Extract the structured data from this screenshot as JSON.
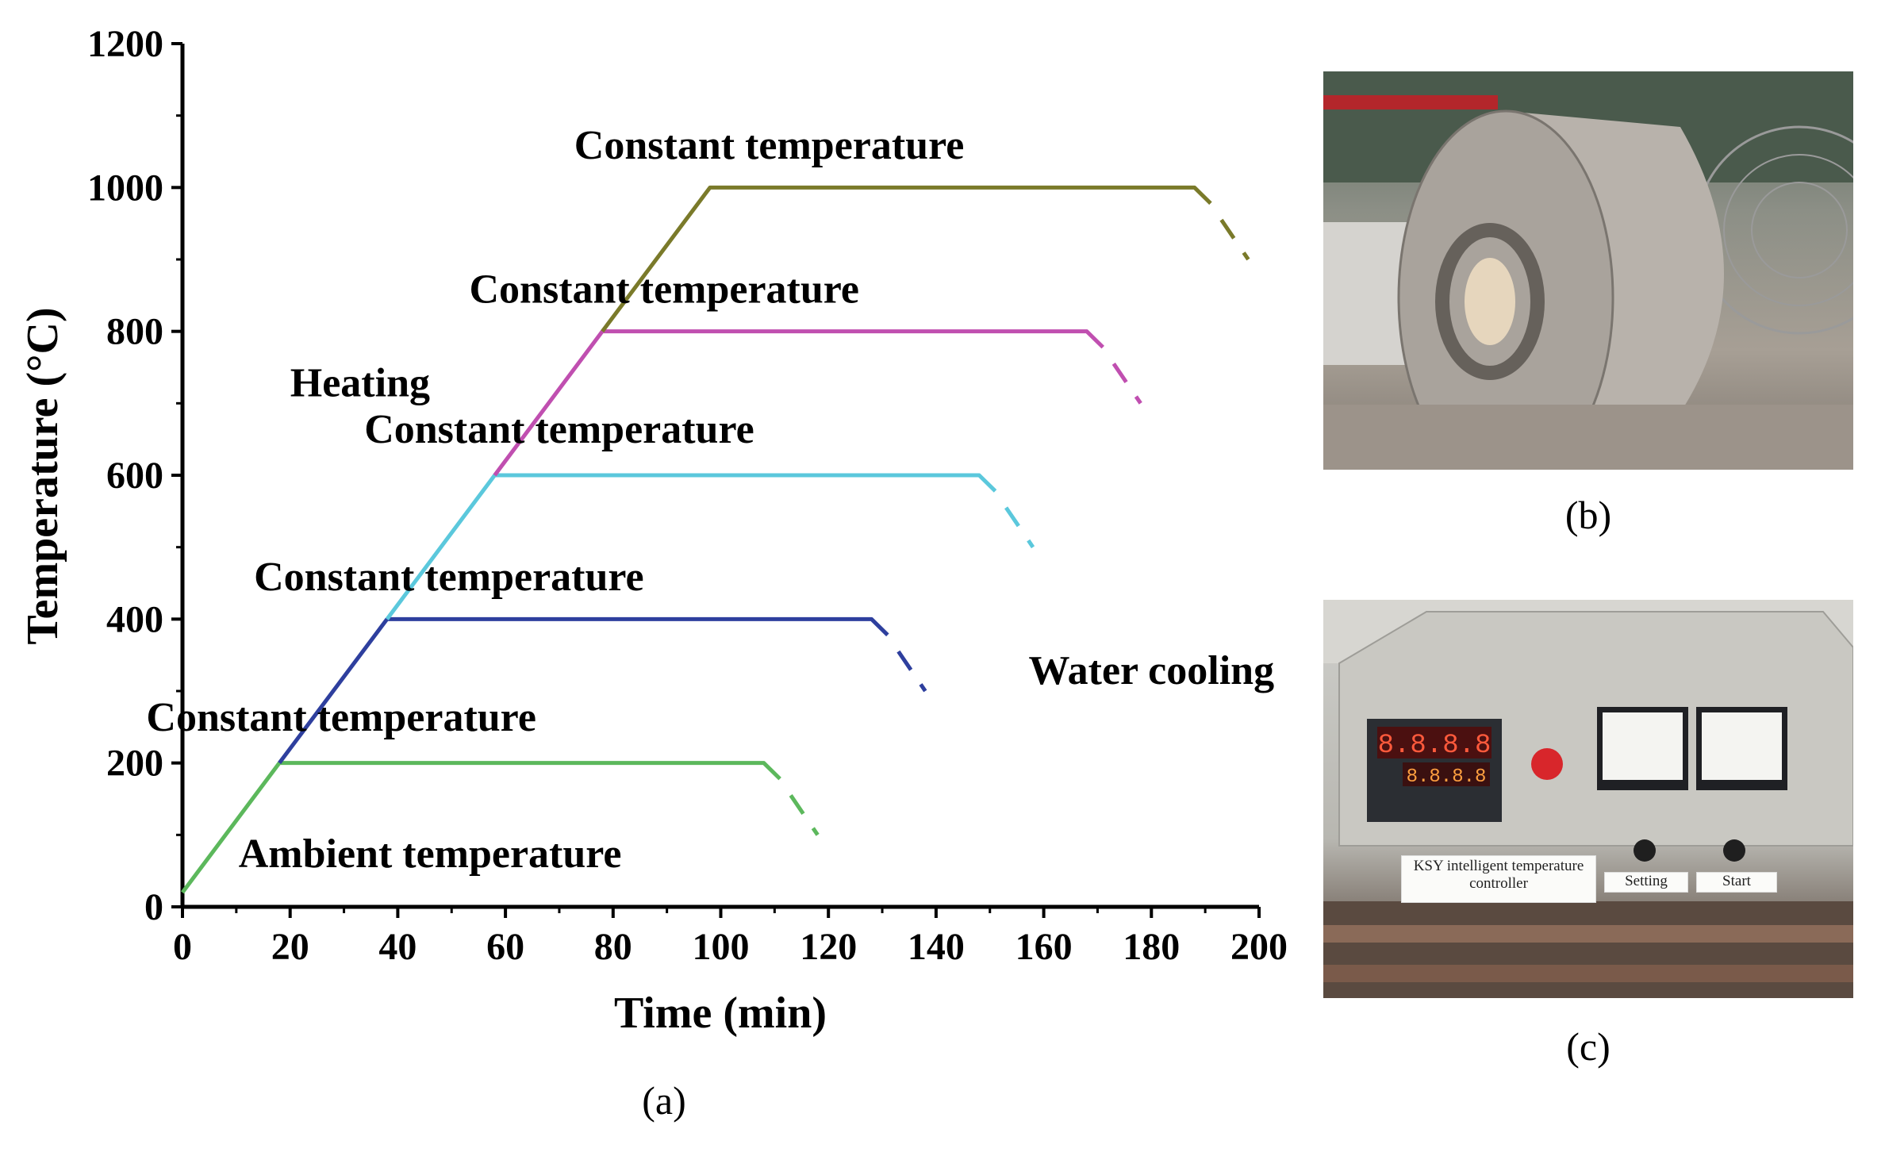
{
  "chart_data": {
    "type": "line",
    "xlabel": "Time (min)",
    "ylabel": "Temperature (°C)",
    "xlim": [
      0,
      200
    ],
    "ylim": [
      0,
      1200
    ],
    "x_ticks": [
      0,
      20,
      40,
      60,
      80,
      100,
      120,
      140,
      160,
      180,
      200
    ],
    "y_ticks": [
      0,
      200,
      400,
      600,
      800,
      1000,
      1200
    ],
    "series": [
      {
        "color": "#5cb85c",
        "points": [
          [
            0,
            20
          ],
          [
            18,
            200
          ],
          [
            108,
            200
          ],
          [
            111,
            178
          ]
        ],
        "cooling": [
          [
            113,
            155
          ],
          [
            118,
            100
          ]
        ]
      },
      {
        "color": "#2e3f9e",
        "points": [
          [
            18,
            200
          ],
          [
            38,
            400
          ],
          [
            128,
            400
          ],
          [
            131,
            378
          ]
        ],
        "cooling": [
          [
            133,
            355
          ],
          [
            138,
            300
          ]
        ]
      },
      {
        "color": "#5bc8dc",
        "points": [
          [
            38,
            400
          ],
          [
            58,
            600
          ],
          [
            148,
            600
          ],
          [
            151,
            578
          ]
        ],
        "cooling": [
          [
            153,
            555
          ],
          [
            158,
            500
          ]
        ]
      },
      {
        "color": "#c04fb0",
        "points": [
          [
            58,
            600
          ],
          [
            78,
            800
          ],
          [
            168,
            800
          ],
          [
            171,
            778
          ]
        ],
        "cooling": [
          [
            173,
            755
          ],
          [
            178,
            700
          ]
        ]
      },
      {
        "color": "#7a7a2a",
        "points": [
          [
            78,
            800
          ],
          [
            98,
            1000
          ],
          [
            188,
            1000
          ],
          [
            191,
            978
          ]
        ],
        "cooling": [
          [
            193,
            955
          ],
          [
            198,
            900
          ]
        ]
      }
    ],
    "annotations": [
      {
        "text": "Constant temperature",
        "x": 109,
        "y": 1040
      },
      {
        "text": "Constant temperature",
        "x": 89.5,
        "y": 840
      },
      {
        "text": "Constant temperature",
        "x": 70,
        "y": 645
      },
      {
        "text": "Constant temperature",
        "x": 49.5,
        "y": 440
      },
      {
        "text": "Constant temperature",
        "x": 29.5,
        "y": 245
      },
      {
        "text": "Heating",
        "x": 33,
        "y": 710
      },
      {
        "text": "Water cooling",
        "x": 180,
        "y": 310
      },
      {
        "text": "Ambient temperature",
        "x": 46,
        "y": 55
      }
    ],
    "legend": "none",
    "grid": false
  },
  "captions": {
    "a": "(a)",
    "b": "(b)",
    "c": "(c)"
  },
  "photo_c_labels": {
    "controller": "KSY intelligent temperature controller",
    "setting": "Setting",
    "start": "Start"
  }
}
